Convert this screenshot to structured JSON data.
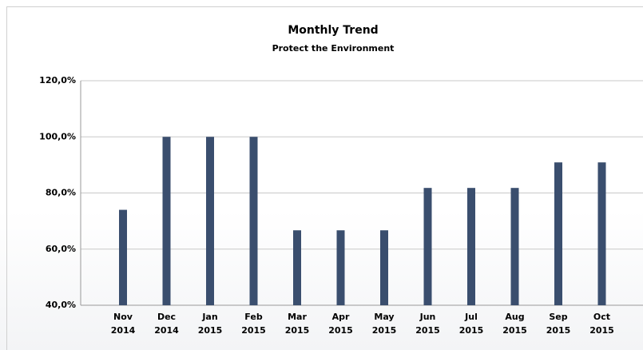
{
  "chart_data": {
    "type": "bar",
    "title": "Monthly Trend",
    "subtitle": "Protect the Environment",
    "categories": [
      "Nov 2014",
      "Dec 2014",
      "Jan 2015",
      "Feb 2015",
      "Mar 2015",
      "Apr 2015",
      "May 2015",
      "Jun 2015",
      "Jul 2015",
      "Aug 2015",
      "Sep 2015",
      "Oct 2015"
    ],
    "values": [
      74,
      100,
      100,
      100,
      66.7,
      66.7,
      66.7,
      81.8,
      81.8,
      81.8,
      90.9,
      90.9
    ],
    "color": "#3a4e6e",
    "ylim": [
      40,
      120
    ],
    "yticks": [
      {
        "value": 40,
        "label": "40,0%"
      },
      {
        "value": 60,
        "label": "60,0%"
      },
      {
        "value": 80,
        "label": "80,0%"
      },
      {
        "value": 100,
        "label": "100,0%"
      },
      {
        "value": 120,
        "label": "120,0%"
      }
    ],
    "grid": true
  }
}
